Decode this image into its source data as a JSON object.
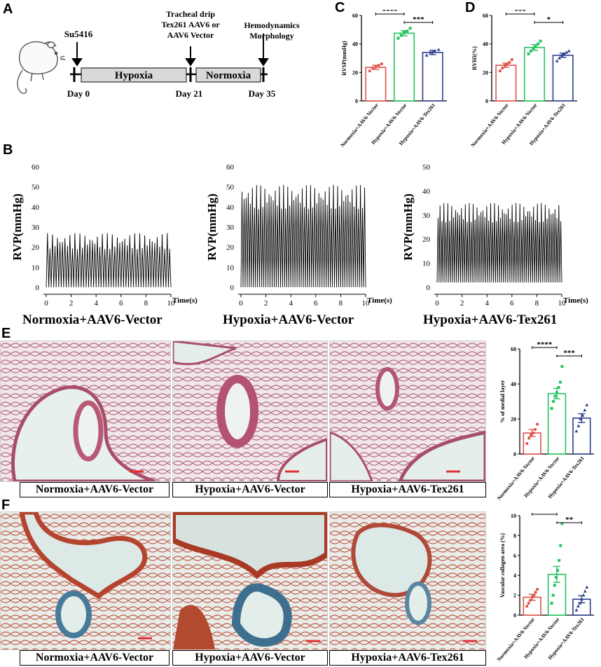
{
  "panels": {
    "A": "A",
    "B": "B",
    "C": "C",
    "D": "D",
    "E": "E",
    "F": "F"
  },
  "timeline": {
    "su5416": "Su5416",
    "drip_line1": "Tracheal drip",
    "drip_line2": "Tex261 AAV6 or",
    "drip_line3": "AAV6 Vector",
    "hemo_line1": "Hemodynamics",
    "hemo_line2": "Morphology",
    "hypoxia": "Hypoxia",
    "normoxia": "Normoxia",
    "day0": "Day 0",
    "day21": "Day 21",
    "day35": "Day 35"
  },
  "groups": [
    "Normoxia+AAV6-Vector",
    "Hypoxia+AAV6-Vector",
    "Hypoxia+AAV6-Tex261"
  ],
  "group_colors": [
    "#e0534a",
    "#22c55e",
    "#2c3e8c"
  ],
  "traces": {
    "ylabel": "RVP(mmHg)",
    "xlabel": "Time(s)",
    "xticks": [
      "0",
      "2",
      "4",
      "6",
      "8",
      "10"
    ],
    "yticks_60": [
      "0",
      "10",
      "20",
      "30",
      "40",
      "50",
      "60"
    ],
    "yticks_50": [
      "0",
      "10",
      "20",
      "30",
      "40",
      "50"
    ],
    "titles": [
      "Normoxia+AAV6-Vector",
      "Hypoxia+AAV6-Vector",
      "Hypoxia+AAV6-Tex261"
    ]
  },
  "captions_E": [
    "Normoxia+AAV6-Vector",
    "Hypoxia+AAV6-Vector",
    "Hypoxia+AAV6-Tex261"
  ],
  "captions_F": [
    "Normoxia+AAV6-Vector",
    "Hypoxia+AAV6-Vector",
    "Hypoxia+AAV6-Tex261"
  ],
  "chart_data": [
    {
      "panel": "C",
      "type": "bar",
      "ylabel": "RVSP(mmHg)",
      "ylim": [
        0,
        60
      ],
      "yticks": [
        "0",
        "20",
        "40",
        "60"
      ],
      "categories": [
        "Normoxia+AAV6-Vector",
        "Hypoxia+AAV6-Vector",
        "Hypoxia+AAV6-Tex261"
      ],
      "values": [
        23.5,
        47.5,
        34
      ],
      "errors": [
        1.5,
        1.8,
        1.5
      ],
      "points": [
        [
          21,
          23,
          24,
          25,
          26
        ],
        [
          44,
          46,
          48,
          49,
          51
        ],
        [
          32,
          34,
          35,
          36
        ]
      ],
      "significance": [
        {
          "from": 0,
          "to": 1,
          "label": "****"
        },
        {
          "from": 1,
          "to": 2,
          "label": "***"
        }
      ]
    },
    {
      "panel": "D",
      "type": "bar",
      "ylabel": "RVHI(%)",
      "ylim": [
        0,
        60
      ],
      "yticks": [
        "0",
        "20",
        "40",
        "60"
      ],
      "categories": [
        "Normoxia+AAV6-Vector",
        "Hypoxia+AAV6-Vector",
        "Hypoxia+AAV6-Tex261"
      ],
      "values": [
        25,
        37.5,
        32
      ],
      "errors": [
        1.5,
        2,
        1.5
      ],
      "points": [
        [
          21,
          23,
          25,
          26,
          27,
          29
        ],
        [
          33,
          35,
          37,
          38,
          40,
          42
        ],
        [
          28,
          30,
          32,
          33,
          34,
          35
        ]
      ],
      "significance": [
        {
          "from": 0,
          "to": 1,
          "label": "***"
        },
        {
          "from": 1,
          "to": 2,
          "label": "*"
        }
      ]
    },
    {
      "panel": "E",
      "type": "bar",
      "ylabel": "% of medial layer",
      "ylim": [
        0,
        60
      ],
      "yticks": [
        "0",
        "20",
        "40",
        "60"
      ],
      "categories": [
        "Normoxia+AAV6-Vector",
        "Hypoxia+AAV6-Vector",
        "Hypoxia+AAV6-Tex261"
      ],
      "values": [
        12,
        34.5,
        20.5
      ],
      "errors": [
        2,
        3,
        2.5
      ],
      "points": [
        [
          6,
          9,
          11,
          12,
          14,
          17
        ],
        [
          26,
          30,
          33,
          35,
          38,
          41,
          50
        ],
        [
          13,
          16,
          20,
          22,
          25,
          28
        ]
      ],
      "significance": [
        {
          "from": 0,
          "to": 1,
          "label": "****"
        },
        {
          "from": 1,
          "to": 2,
          "label": "***"
        }
      ]
    },
    {
      "panel": "F",
      "type": "bar",
      "ylabel": "Vascular collagen area (%)",
      "ylim": [
        0,
        10
      ],
      "yticks": [
        "0",
        "2",
        "4",
        "6",
        "8",
        "10"
      ],
      "categories": [
        "Normoxia+AAV6-Vector",
        "Hypoxia+AAV6-Vector",
        "Hypoxia+AAV6-Tex261"
      ],
      "values": [
        1.8,
        4.1,
        1.6
      ],
      "errors": [
        0.3,
        0.8,
        0.35
      ],
      "points": [
        [
          0.9,
          1.2,
          1.5,
          1.8,
          2.0,
          2.3,
          2.6
        ],
        [
          1.2,
          2.0,
          3.0,
          3.8,
          4.5,
          5.5,
          7.0,
          9.2
        ],
        [
          0.5,
          0.9,
          1.2,
          1.6,
          2.0,
          2.4,
          2.8
        ]
      ],
      "significance": [
        {
          "from": 0,
          "to": 1,
          "label": "**"
        },
        {
          "from": 1,
          "to": 2,
          "label": "**"
        }
      ]
    }
  ]
}
